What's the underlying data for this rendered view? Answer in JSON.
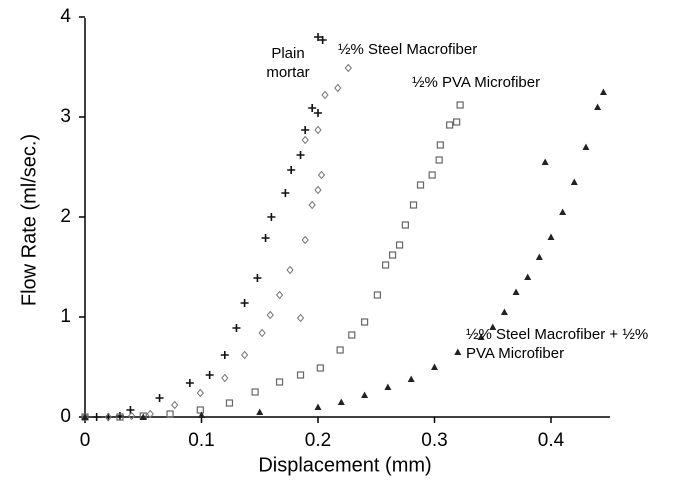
{
  "chart_data": {
    "type": "scatter",
    "x_label": "Displacement (mm)",
    "y_label": "Flow Rate (ml/sec.)",
    "xlim": [
      0,
      0.45
    ],
    "xticks": [
      0,
      0.1,
      0.2,
      0.3,
      0.4
    ],
    "ylim": [
      0,
      4
    ],
    "yticks": [
      0,
      1,
      2,
      3,
      4
    ],
    "grid": false,
    "series": [
      {
        "name": "Plain mortar",
        "color": "#111111",
        "marker": "plus",
        "x": [
          0,
          0.01,
          0.02,
          0.03,
          0.039,
          0.064,
          0.09,
          0.107,
          0.12,
          0.13,
          0.137,
          0.148,
          0.155,
          0.16,
          0.172,
          0.177,
          0.185,
          0.189,
          0.195,
          0.2,
          0.2,
          0.204
        ],
        "values": [
          0,
          0,
          0,
          0.01,
          0.07,
          0.19,
          0.34,
          0.42,
          0.62,
          0.89,
          1.14,
          1.39,
          1.79,
          2.0,
          2.24,
          2.47,
          2.62,
          2.87,
          3.09,
          3.04,
          3.8,
          3.77
        ]
      },
      {
        "name": "½% Steel Macrofiber",
        "color": "#777777",
        "marker": "diamond",
        "x": [
          0,
          0.02,
          0.04,
          0.056,
          0.077,
          0.099,
          0.12,
          0.137,
          0.152,
          0.159,
          0.167,
          0.176,
          0.185,
          0.189,
          0.195,
          0.2,
          0.203,
          0.189,
          0.2,
          0.206,
          0.217,
          0.226
        ],
        "values": [
          0,
          0,
          0.01,
          0.03,
          0.12,
          0.24,
          0.39,
          0.62,
          0.84,
          1.02,
          1.22,
          1.47,
          0.99,
          1.77,
          2.12,
          2.27,
          2.42,
          2.77,
          2.87,
          3.22,
          3.29,
          3.49
        ]
      },
      {
        "name": "½% PVA Microfiber",
        "color": "#666666",
        "marker": "square",
        "x": [
          0,
          0.03,
          0.05,
          0.073,
          0.099,
          0.124,
          0.146,
          0.167,
          0.185,
          0.202,
          0.219,
          0.229,
          0.24,
          0.251,
          0.258,
          0.264,
          0.27,
          0.275,
          0.282,
          0.288,
          0.298,
          0.304,
          0.305,
          0.313,
          0.319,
          0.322
        ],
        "values": [
          0,
          0,
          0.01,
          0.03,
          0.07,
          0.14,
          0.25,
          0.35,
          0.42,
          0.49,
          0.67,
          0.82,
          0.95,
          1.22,
          1.52,
          1.62,
          1.72,
          1.92,
          2.12,
          2.32,
          2.42,
          2.57,
          2.72,
          2.92,
          2.95,
          3.12
        ]
      },
      {
        "name": "½% Steel Macrofiber + ½% PVA Microfiber",
        "color": "#222222",
        "marker": "triangle",
        "x": [
          0,
          0.05,
          0.1,
          0.15,
          0.2,
          0.22,
          0.24,
          0.26,
          0.28,
          0.3,
          0.32,
          0.34,
          0.35,
          0.36,
          0.37,
          0.38,
          0.39,
          0.395,
          0.4,
          0.41,
          0.42,
          0.43,
          0.44,
          0.445
        ],
        "values": [
          0,
          0,
          0.02,
          0.05,
          0.1,
          0.15,
          0.22,
          0.3,
          0.38,
          0.5,
          0.65,
          0.8,
          0.9,
          1.05,
          1.25,
          1.4,
          1.6,
          2.55,
          1.8,
          2.05,
          2.35,
          2.7,
          3.1,
          3.25
        ]
      }
    ]
  }
}
